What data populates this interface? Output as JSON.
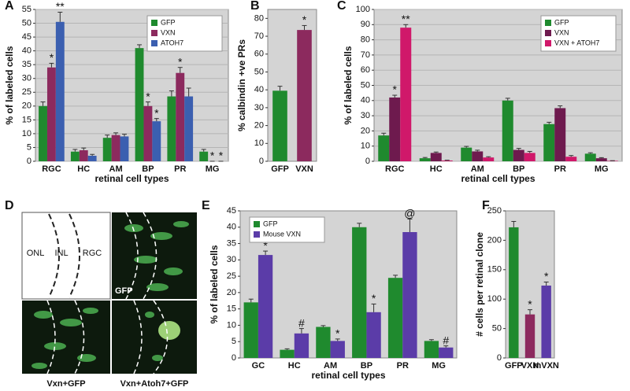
{
  "chart_data": [
    {
      "type": "bar",
      "panel": "A",
      "ylabel": "% of labeled cells",
      "xlabel": "retinal cell types",
      "categories": [
        "RGC",
        "HC",
        "AM",
        "BP",
        "PR",
        "MG"
      ],
      "series": [
        {
          "name": "GFP",
          "color": "#1f8a2e",
          "values": [
            20,
            3.5,
            8.5,
            41,
            23.5,
            3.5
          ],
          "errors": [
            1.5,
            0.8,
            1,
            1.2,
            2,
            0.8
          ]
        },
        {
          "name": "VXN",
          "color": "#8c2a5e",
          "values": [
            34,
            4,
            9.5,
            20,
            32,
            0
          ],
          "errors": [
            1.5,
            0.8,
            0.8,
            1.5,
            2,
            0
          ]
        },
        {
          "name": "ATOH7",
          "color": "#3b5fb0",
          "values": [
            50.5,
            2,
            9,
            14.5,
            23.5,
            0
          ],
          "errors": [
            3.5,
            0.5,
            0.8,
            1,
            3,
            0
          ]
        }
      ],
      "annotations": [
        {
          "label": "*",
          "category": "RGC",
          "series": "VXN"
        },
        {
          "label": "**",
          "category": "RGC",
          "series": "ATOH7"
        },
        {
          "label": "*",
          "category": "BP",
          "series": "VXN"
        },
        {
          "label": "*",
          "category": "BP",
          "series": "ATOH7"
        },
        {
          "label": "*",
          "category": "PR",
          "series": "VXN"
        },
        {
          "label": "*",
          "category": "MG",
          "series": "VXN"
        },
        {
          "label": "*",
          "category": "MG",
          "series": "ATOH7"
        }
      ],
      "ylim": [
        0,
        55
      ],
      "yticks": [
        0,
        5,
        10,
        15,
        20,
        25,
        30,
        35,
        40,
        45,
        50,
        55
      ],
      "grid": true,
      "legend": "top-right"
    },
    {
      "type": "bar",
      "panel": "B",
      "ylabel": "% calbindin +ve PRs",
      "categories": [
        "GFP",
        "VXN"
      ],
      "values": [
        39.5,
        73.5
      ],
      "errors": [
        2.5,
        2.5
      ],
      "colors": [
        "#1f8a2e",
        "#8c2a5e"
      ],
      "annotations": [
        {
          "label": "*",
          "category": "VXN"
        }
      ],
      "ylim": [
        0,
        85
      ],
      "yticks": [
        0,
        10,
        20,
        30,
        40,
        50,
        60,
        70,
        80
      ],
      "grid": false
    },
    {
      "type": "bar",
      "panel": "C",
      "ylabel": "% of labeled cells",
      "xlabel": "retinal cell types",
      "categories": [
        "RGC",
        "HC",
        "AM",
        "BP",
        "PR",
        "MG"
      ],
      "series": [
        {
          "name": "GFP",
          "color": "#1f8a2e",
          "values": [
            17,
            2,
            9,
            40,
            24.5,
            5
          ],
          "errors": [
            1.5,
            0.5,
            0.8,
            1.5,
            1.2,
            0.6
          ]
        },
        {
          "name": "VXN",
          "color": "#6e1a4e",
          "values": [
            42,
            5.5,
            6.5,
            7.5,
            35,
            2
          ],
          "errors": [
            1.5,
            0.6,
            0.8,
            1,
            1.5,
            0.4
          ]
        },
        {
          "name": "VXN + ATOH7",
          "color": "#d0186a",
          "values": [
            88,
            0.5,
            2.5,
            5.5,
            3,
            0.3
          ],
          "errors": [
            2,
            0.2,
            0.5,
            1,
            0.8,
            0.1
          ]
        }
      ],
      "annotations": [
        {
          "label": "*",
          "category": "RGC",
          "series": "VXN"
        },
        {
          "label": "**",
          "category": "RGC",
          "series": "VXN + ATOH7"
        }
      ],
      "ylim": [
        0,
        100
      ],
      "yticks": [
        0,
        10,
        20,
        30,
        40,
        50,
        60,
        70,
        80,
        90,
        100
      ],
      "grid": true,
      "legend": "top-right"
    },
    {
      "type": "bar",
      "panel": "E",
      "ylabel": "% of labeled cells",
      "xlabel": "retinal cell types",
      "categories": [
        "GC",
        "HC",
        "AM",
        "BP",
        "PR",
        "MG"
      ],
      "series": [
        {
          "name": "GFP",
          "color": "#1f8a2e",
          "values": [
            17,
            2.5,
            9.5,
            40,
            24.5,
            5.2
          ],
          "errors": [
            1,
            0.3,
            0.4,
            1.2,
            0.8,
            0.4
          ]
        },
        {
          "name": "Mouse VXN",
          "color": "#5b3ca8",
          "values": [
            31.5,
            7.5,
            5.2,
            14,
            38.5,
            3.2
          ],
          "errors": [
            1.2,
            1.5,
            0.6,
            2.5,
            4,
            0.5
          ]
        }
      ],
      "annotations": [
        {
          "label": "*",
          "category": "GC",
          "series": "Mouse VXN"
        },
        {
          "label": "#",
          "category": "HC",
          "series": "Mouse VXN"
        },
        {
          "label": "*",
          "category": "AM",
          "series": "Mouse VXN"
        },
        {
          "label": "*",
          "category": "BP",
          "series": "Mouse VXN"
        },
        {
          "label": "@",
          "category": "PR",
          "series": "Mouse VXN"
        },
        {
          "label": "#",
          "category": "MG",
          "series": "Mouse VXN"
        }
      ],
      "ylim": [
        0,
        45
      ],
      "yticks": [
        0,
        5,
        10,
        15,
        20,
        25,
        30,
        35,
        40,
        45
      ],
      "grid": false,
      "legend": "top-left"
    },
    {
      "type": "bar",
      "panel": "F",
      "ylabel": "# cells per retinal clone",
      "categories": [
        "GFP",
        "VXN",
        "mVXN"
      ],
      "values": [
        222,
        74,
        123
      ],
      "errors": [
        10,
        8,
        6
      ],
      "colors": [
        "#1f8a2e",
        "#8c2a5e",
        "#5b3ca8"
      ],
      "annotations": [
        {
          "label": "*",
          "category": "VXN"
        },
        {
          "label": "*",
          "category": "mVXN"
        }
      ],
      "ylim": [
        0,
        250
      ],
      "yticks": [
        0,
        50,
        100,
        150,
        200,
        250
      ],
      "grid": false
    }
  ],
  "panel_d": {
    "panel": "D",
    "layers": [
      "ONL",
      "INL",
      "RGC"
    ],
    "captions": [
      "GFP",
      "Vxn+GFP",
      "Vxn+Atoh7+GFP"
    ]
  }
}
